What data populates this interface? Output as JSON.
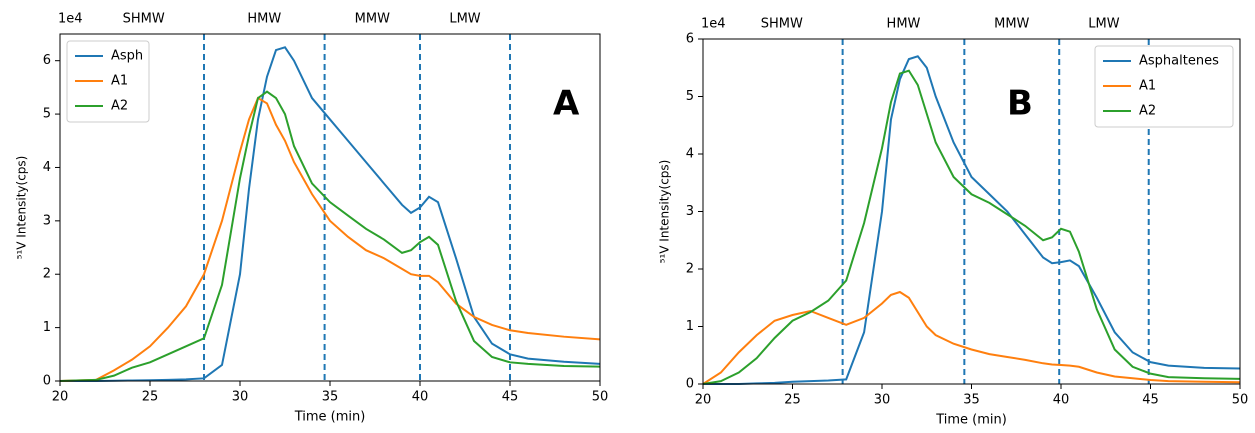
{
  "chart_data": [
    {
      "type": "line",
      "offset_label": "1e4",
      "x_label": "Time (min)",
      "y_label": "⁵¹V Intensity(cps)",
      "annotation": "A",
      "xlim": [
        20,
        50
      ],
      "xticks": [
        20,
        25,
        30,
        35,
        40,
        45,
        50
      ],
      "ylim": [
        0,
        6.5
      ],
      "yticks": [
        0,
        1,
        2,
        3,
        4,
        5,
        6
      ],
      "legend": "upper left",
      "vlines": [
        28,
        34.7,
        40,
        45
      ],
      "vline_color": "#1f77b4",
      "region_labels": [
        "SHMW",
        "HMW",
        "MMW",
        "LMW"
      ],
      "x": [
        20,
        22,
        23,
        24,
        25,
        26,
        27,
        28,
        29,
        30,
        30.5,
        31,
        31.5,
        32,
        32.5,
        33,
        34,
        35,
        36,
        37,
        38,
        39,
        39.5,
        40,
        40.5,
        41,
        42,
        43,
        44,
        45,
        46,
        48,
        50
      ],
      "series": [
        {
          "name": "Asph",
          "color": "#1f77b4",
          "values": [
            0,
            0,
            0.005,
            0.01,
            0.015,
            0.02,
            0.03,
            0.05,
            0.3,
            2.0,
            3.6,
            4.9,
            5.7,
            6.2,
            6.25,
            6.0,
            5.3,
            4.9,
            4.5,
            4.1,
            3.7,
            3.3,
            3.15,
            3.25,
            3.45,
            3.35,
            2.3,
            1.2,
            0.7,
            0.5,
            0.42,
            0.36,
            0.32
          ]
        },
        {
          "name": "A1",
          "color": "#ff7f0e",
          "values": [
            0,
            0.02,
            0.2,
            0.4,
            0.65,
            1.0,
            1.4,
            2.0,
            3.0,
            4.3,
            4.9,
            5.3,
            5.2,
            4.8,
            4.5,
            4.1,
            3.5,
            3.0,
            2.7,
            2.45,
            2.3,
            2.1,
            2.0,
            1.97,
            1.97,
            1.85,
            1.45,
            1.2,
            1.05,
            0.95,
            0.9,
            0.83,
            0.78
          ]
        },
        {
          "name": "A2",
          "color": "#2ca02c",
          "values": [
            0,
            0.02,
            0.1,
            0.25,
            0.35,
            0.5,
            0.65,
            0.8,
            1.8,
            3.8,
            4.6,
            5.3,
            5.42,
            5.3,
            5.0,
            4.4,
            3.7,
            3.35,
            3.1,
            2.85,
            2.65,
            2.4,
            2.45,
            2.6,
            2.7,
            2.55,
            1.5,
            0.75,
            0.45,
            0.35,
            0.32,
            0.28,
            0.27
          ]
        }
      ]
    },
    {
      "type": "line",
      "offset_label": "1e4",
      "x_label": "Time (min)",
      "y_label": "⁵¹V Intensity(cps)",
      "annotation": "B",
      "xlim": [
        20,
        50
      ],
      "xticks": [
        20,
        25,
        30,
        35,
        40,
        45,
        50
      ],
      "ylim": [
        0,
        6
      ],
      "yticks": [
        0,
        1,
        2,
        3,
        4,
        5,
        6
      ],
      "legend": "upper right",
      "vlines": [
        27.8,
        34.6,
        39.9,
        44.9
      ],
      "vline_color": "#1f77b4",
      "region_labels": [
        "SHMW",
        "HMW",
        "MMW",
        "LMW"
      ],
      "x": [
        20,
        21,
        22,
        23,
        24,
        25,
        26,
        27,
        28,
        29,
        30,
        30.5,
        31,
        31.5,
        32,
        32.5,
        33,
        34,
        35,
        36,
        37,
        38,
        39,
        39.5,
        40,
        40.5,
        41,
        42,
        43,
        44,
        45,
        46,
        48,
        50
      ],
      "series": [
        {
          "name": "Asphaltenes",
          "color": "#1f77b4",
          "values": [
            0,
            0,
            0,
            0.01,
            0.02,
            0.04,
            0.05,
            0.06,
            0.08,
            0.9,
            3.0,
            4.6,
            5.3,
            5.65,
            5.7,
            5.5,
            5.0,
            4.2,
            3.6,
            3.3,
            3.0,
            2.6,
            2.2,
            2.1,
            2.12,
            2.15,
            2.05,
            1.5,
            0.9,
            0.55,
            0.38,
            0.32,
            0.28,
            0.27
          ]
        },
        {
          "name": "A1",
          "color": "#ff7f0e",
          "values": [
            0,
            0.2,
            0.55,
            0.85,
            1.1,
            1.2,
            1.27,
            1.15,
            1.03,
            1.15,
            1.4,
            1.55,
            1.6,
            1.5,
            1.25,
            1.0,
            0.85,
            0.7,
            0.6,
            0.52,
            0.47,
            0.42,
            0.36,
            0.34,
            0.33,
            0.32,
            0.3,
            0.2,
            0.13,
            0.1,
            0.07,
            0.05,
            0.04,
            0.03
          ]
        },
        {
          "name": "A2",
          "color": "#2ca02c",
          "values": [
            0,
            0.05,
            0.2,
            0.45,
            0.8,
            1.1,
            1.25,
            1.45,
            1.8,
            2.8,
            4.1,
            4.9,
            5.4,
            5.45,
            5.2,
            4.7,
            4.2,
            3.6,
            3.3,
            3.15,
            2.95,
            2.75,
            2.5,
            2.55,
            2.7,
            2.65,
            2.3,
            1.3,
            0.6,
            0.3,
            0.18,
            0.12,
            0.1,
            0.09
          ]
        }
      ]
    }
  ]
}
